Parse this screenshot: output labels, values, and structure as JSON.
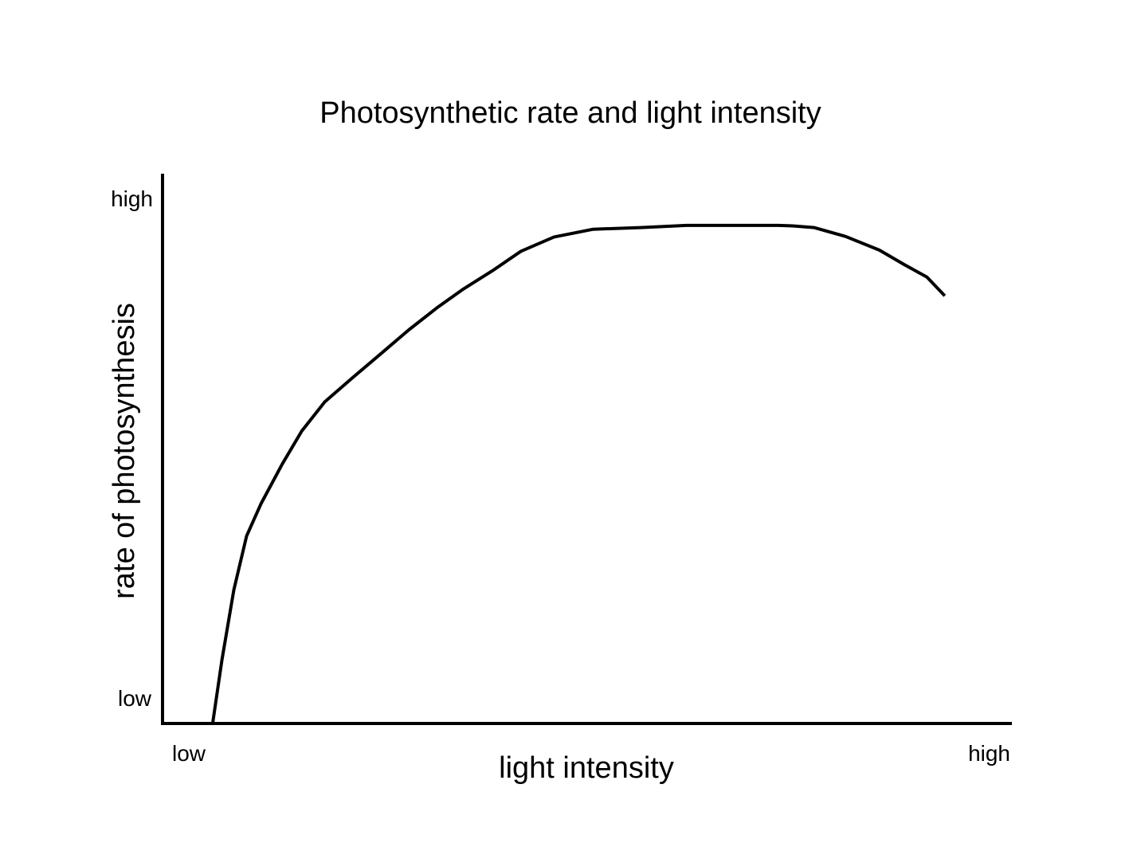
{
  "chart_data": {
    "type": "line",
    "title": "Photosynthetic rate and light intensity",
    "xlabel": "light intensity",
    "ylabel": "rate of photosynthesis",
    "x_tick_labels": {
      "low": "low",
      "high": "high"
    },
    "y_tick_labels": {
      "low": "low",
      "high": "high"
    },
    "xlim": [
      0,
      100
    ],
    "ylim": [
      0,
      100
    ],
    "grid": false,
    "legend": "none",
    "line_color": "#000000",
    "series": [
      {
        "x": [
          5.9,
          7.0,
          8.4,
          9.9,
          11.6,
          14.1,
          16.4,
          19.1,
          22.3,
          25.9,
          29.0,
          32.3,
          35.3,
          38.8,
          42.2,
          46.1,
          50.7,
          56.3,
          61.7,
          67.4,
          72.5,
          74.2,
          76.7,
          80.4,
          84.4,
          87.3,
          90.0,
          92.1
        ],
        "y": [
          0,
          11.6,
          24.3,
          34.1,
          40.0,
          47.2,
          53.2,
          58.5,
          62.8,
          67.5,
          71.6,
          75.6,
          78.9,
          82.3,
          85.9,
          88.5,
          89.9,
          90.2,
          90.6,
          90.6,
          90.6,
          90.5,
          90.2,
          88.6,
          86.1,
          83.5,
          81.2,
          77.8
        ]
      }
    ]
  }
}
